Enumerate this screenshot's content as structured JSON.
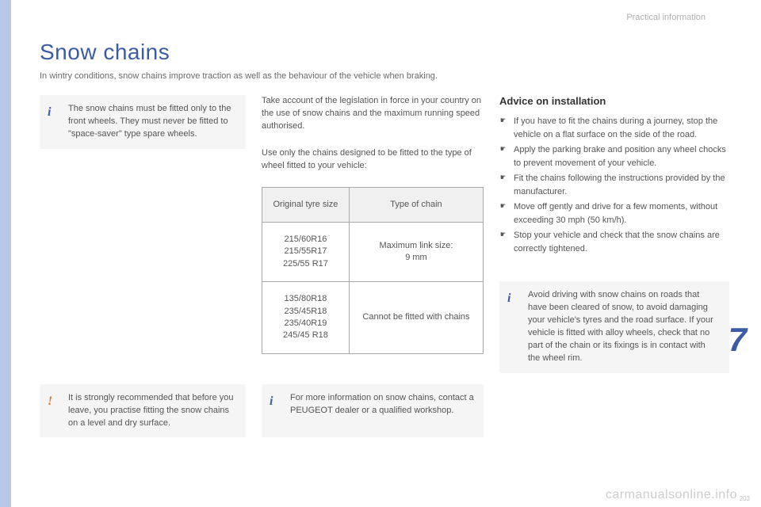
{
  "colors": {
    "accent": "#3b5ba5",
    "tab": "#b9c8e6",
    "callout_bg": "#f5f5f5",
    "text": "#555555",
    "border": "#aaaaaa",
    "breadcrumb": "#b0b0b0",
    "warn": "#d97a2b"
  },
  "breadcrumb": "Practical information",
  "section_number": "7",
  "title": "Snow chains",
  "intro": "In wintry conditions, snow chains improve traction as well as the behaviour of the vehicle when braking.",
  "left": {
    "info1": "The snow chains must be fitted only to the front wheels. They must never be fitted to \"space-saver\" type spare wheels.",
    "warn": "It is strongly recommended that before you leave, you practise fitting the snow chains on a level and dry surface."
  },
  "mid": {
    "para1": "Take account of the legislation in force in your country on the use of snow chains and the maximum running speed authorised.",
    "para2": "Use only the chains designed to be fitted to the type of wheel fitted to your vehicle:",
    "table": {
      "headers": [
        "Original tyre size",
        "Type of chain"
      ],
      "rows": [
        {
          "sizes": [
            "215/60R16",
            "215/55R17",
            "225/55 R17"
          ],
          "chain": "Maximum link size:\n9 mm"
        },
        {
          "sizes": [
            "135/80R18",
            "235/45R18",
            "235/40R19",
            "245/45 R18"
          ],
          "chain": "Cannot be fitted with chains"
        }
      ]
    },
    "info2": "For more information on snow chains, contact a PEUGEOT dealer or a qualified workshop."
  },
  "right": {
    "advice_title": "Advice on installation",
    "advice": [
      "If you have to fit the chains during a journey, stop the vehicle on a flat surface on the side of the road.",
      "Apply the parking brake and position any wheel chocks to prevent movement of your vehicle.",
      "Fit the chains following the instructions provided by the manufacturer.",
      "Move off gently and drive for a few moments, without exceeding 30 mph (50 km/h).",
      "Stop your vehicle and check that the snow chains are correctly tightened."
    ],
    "info3": "Avoid driving with snow chains on roads that have been cleared of snow, to avoid damaging your vehicle's tyres and the road surface. If your vehicle is fitted with alloy wheels, check that no part of the chain or its fixings is in contact with the wheel rim."
  },
  "watermark": "carmanualsonline.info",
  "page_num": "203"
}
